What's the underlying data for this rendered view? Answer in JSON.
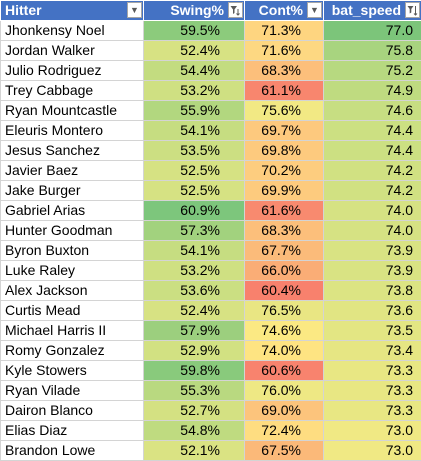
{
  "headers": {
    "hitter": "Hitter",
    "swing": "Swing%",
    "cont": "Cont%",
    "bat_speed": "bat_speed"
  },
  "icons": {
    "hitter_filter": "dropdown-arrow-icon",
    "swing_filter": "filter-funnel-icon",
    "cont_filter": "dropdown-arrow-icon",
    "bat_speed_filter": "sort-descending-filter-icon"
  },
  "rows": [
    {
      "name": "Jhonkensy Noel",
      "swing": "59.5%",
      "cont": "71.3%",
      "bat": "77.0",
      "swing_color": "#8ccb7c",
      "cont_color": "#fed580",
      "bat_color": "#7cc57a"
    },
    {
      "name": "Jordan Walker",
      "swing": "52.4%",
      "cont": "71.6%",
      "bat": "75.8",
      "swing_color": "#d7e283",
      "cont_color": "#fdd882",
      "bat_color": "#a8d47f"
    },
    {
      "name": "Julio Rodriguez",
      "swing": "54.4%",
      "cont": "68.3%",
      "bat": "75.2",
      "swing_color": "#c3dc80",
      "cont_color": "#fcbf7b",
      "bat_color": "#b7d980"
    },
    {
      "name": "Trey Cabbage",
      "swing": "53.2%",
      "cont": "61.1%",
      "bat": "74.9",
      "swing_color": "#cfe082",
      "cont_color": "#f8866e",
      "bat_color": "#bfdb80"
    },
    {
      "name": "Ryan Mountcastle",
      "swing": "55.9%",
      "cont": "75.6%",
      "bat": "74.6",
      "swing_color": "#b2d77f",
      "cont_color": "#f2e984",
      "bat_color": "#c7de82"
    },
    {
      "name": "Eleuris Montero",
      "swing": "54.1%",
      "cont": "69.7%",
      "bat": "74.4",
      "swing_color": "#c6dd81",
      "cont_color": "#fdc97e",
      "bat_color": "#cce082"
    },
    {
      "name": "Jesus Sanchez",
      "swing": "53.5%",
      "cont": "69.8%",
      "bat": "74.4",
      "swing_color": "#ccdf82",
      "cont_color": "#fdca7e",
      "bat_color": "#cce082"
    },
    {
      "name": "Javier Baez",
      "swing": "52.5%",
      "cont": "70.2%",
      "bat": "74.2",
      "swing_color": "#d6e283",
      "cont_color": "#fdcd7f",
      "bat_color": "#d1e182"
    },
    {
      "name": "Jake Burger",
      "swing": "52.5%",
      "cont": "69.9%",
      "bat": "74.2",
      "swing_color": "#d6e283",
      "cont_color": "#fdcb7e",
      "bat_color": "#d1e182"
    },
    {
      "name": "Gabriel Arias",
      "swing": "60.9%",
      "cont": "61.6%",
      "bat": "74.0",
      "swing_color": "#7dc67c",
      "cont_color": "#f88a6f",
      "bat_color": "#d6e283"
    },
    {
      "name": "Hunter Goodman",
      "swing": "57.3%",
      "cont": "68.3%",
      "bat": "74.0",
      "swing_color": "#a2d27e",
      "cont_color": "#fcbf7b",
      "bat_color": "#d6e283"
    },
    {
      "name": "Byron Buxton",
      "swing": "54.1%",
      "cont": "67.7%",
      "bat": "73.9",
      "swing_color": "#c6dd81",
      "cont_color": "#fbbb7a",
      "bat_color": "#d9e383"
    },
    {
      "name": "Luke Raley",
      "swing": "53.2%",
      "cont": "66.0%",
      "bat": "73.9",
      "swing_color": "#cfe082",
      "cont_color": "#faad76",
      "bat_color": "#d9e383"
    },
    {
      "name": "Alex Jackson",
      "swing": "53.6%",
      "cont": "60.4%",
      "bat": "73.8",
      "swing_color": "#cbdf82",
      "cont_color": "#f8816d",
      "bat_color": "#dce483"
    },
    {
      "name": "Curtis Mead",
      "swing": "52.4%",
      "cont": "76.5%",
      "bat": "73.6",
      "swing_color": "#d7e283",
      "cont_color": "#e9e683",
      "bat_color": "#e1e583"
    },
    {
      "name": "Michael Harris II",
      "swing": "57.9%",
      "cont": "74.6%",
      "bat": "73.5",
      "swing_color": "#9ccf7e",
      "cont_color": "#fbe983",
      "bat_color": "#e3e683"
    },
    {
      "name": "Romy Gonzalez",
      "swing": "52.9%",
      "cont": "74.0%",
      "bat": "73.4",
      "swing_color": "#d2e182",
      "cont_color": "#fee482",
      "bat_color": "#e6e683"
    },
    {
      "name": "Kyle Stowers",
      "swing": "59.8%",
      "cont": "60.6%",
      "bat": "73.3",
      "swing_color": "#89ca7c",
      "cont_color": "#f8836e",
      "bat_color": "#e8e783"
    },
    {
      "name": "Ryan Vilade",
      "swing": "55.3%",
      "cont": "76.0%",
      "bat": "73.3",
      "swing_color": "#b9d980",
      "cont_color": "#eee884",
      "bat_color": "#e8e783"
    },
    {
      "name": "Dairon Blanco",
      "swing": "52.7%",
      "cont": "69.0%",
      "bat": "73.3",
      "swing_color": "#d4e182",
      "cont_color": "#fcc47c",
      "bat_color": "#e8e783"
    },
    {
      "name": "Elias Diaz",
      "swing": "54.8%",
      "cont": "72.4%",
      "bat": "73.0",
      "swing_color": "#bfdb80",
      "cont_color": "#fedd81",
      "bat_color": "#f0e984"
    },
    {
      "name": "Brandon Lowe",
      "swing": "52.1%",
      "cont": "67.5%",
      "bat": "73.0",
      "swing_color": "#dae383",
      "cont_color": "#fbb979",
      "bat_color": "#f0e984"
    }
  ]
}
